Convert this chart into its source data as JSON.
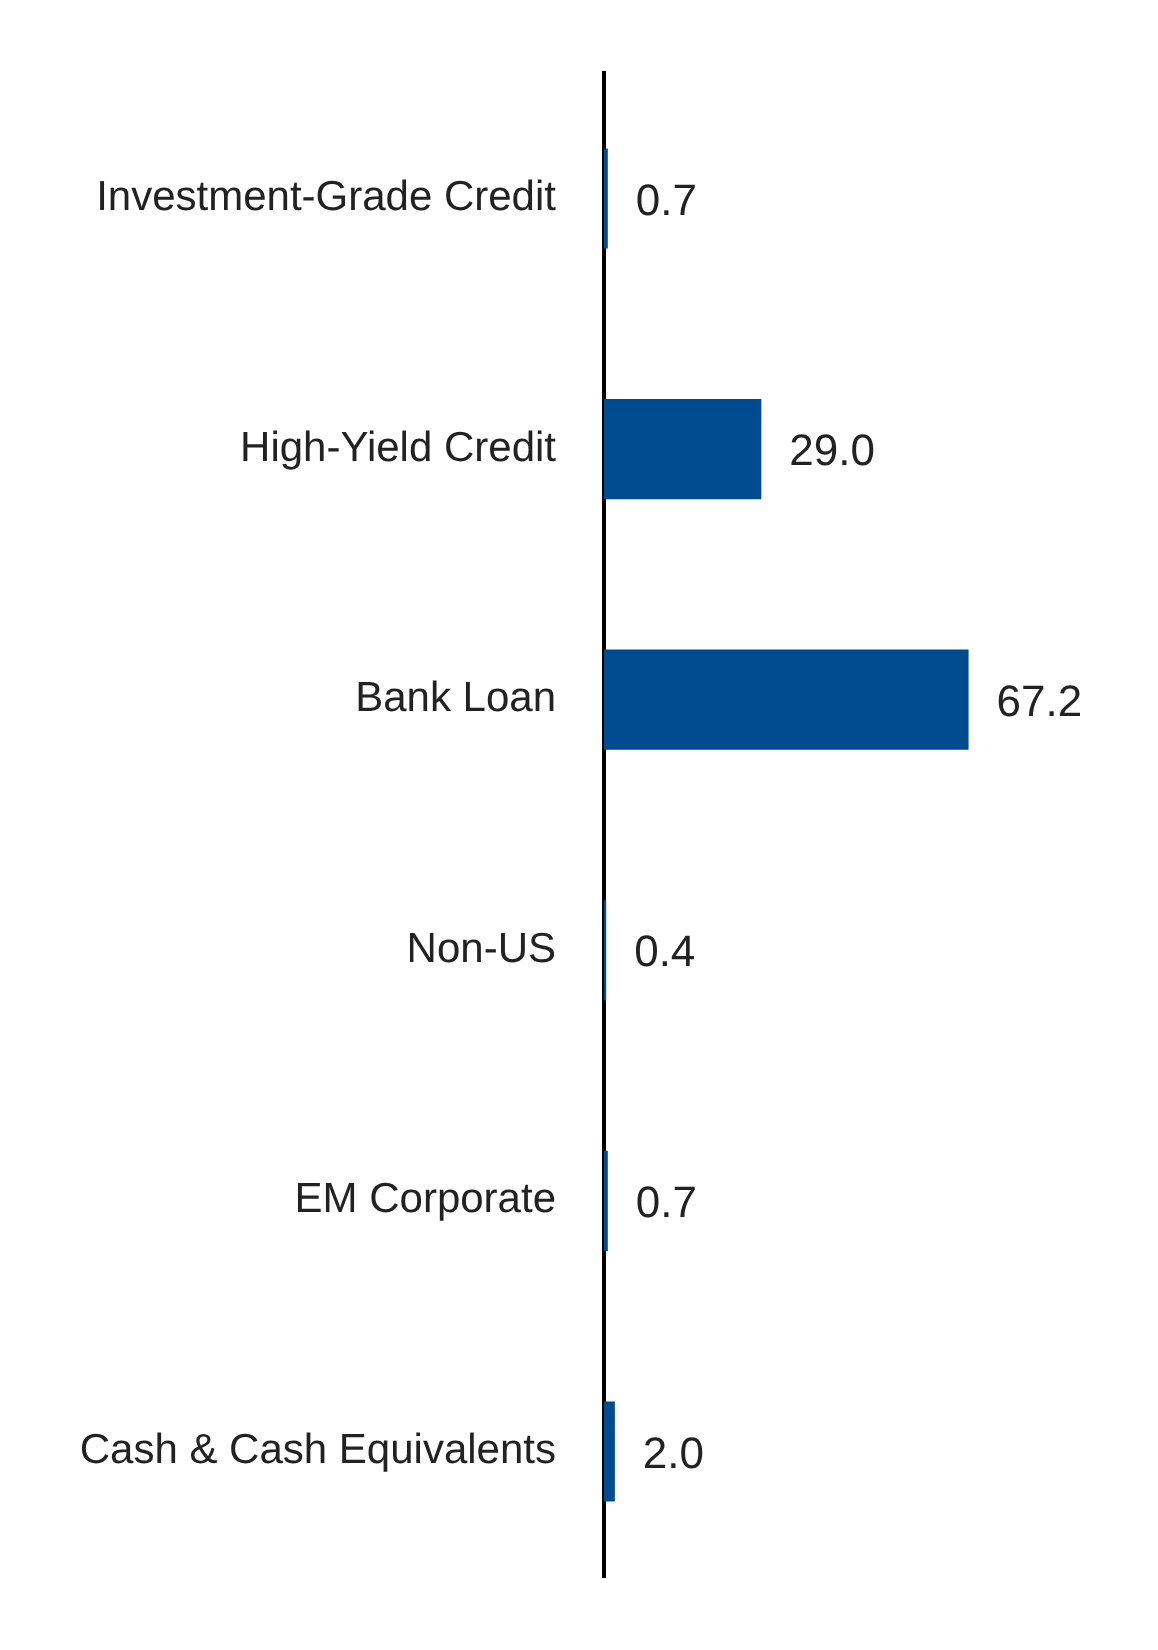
{
  "chart_data": {
    "type": "bar",
    "orientation": "horizontal",
    "categories": [
      "Investment-Grade Credit",
      "High-Yield Credit",
      "Bank Loan",
      "Non-US",
      "EM Corporate",
      "Cash & Cash Equivalents"
    ],
    "values": [
      0.7,
      29.0,
      67.2,
      0.4,
      0.7,
      2.0
    ],
    "value_labels": [
      "0.7",
      "29.0",
      "67.2",
      "0.4",
      "0.7",
      "2.0"
    ],
    "color": "#004a8f",
    "tick_labels": "y"
  }
}
